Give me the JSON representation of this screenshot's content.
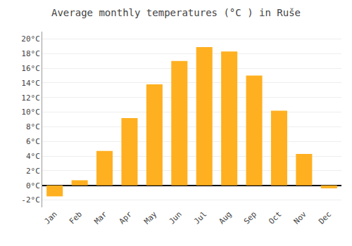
{
  "chart_data": {
    "type": "bar",
    "title": "Average monthly temperatures (°C ) in Ruše",
    "categories": [
      "Jan",
      "Feb",
      "Mar",
      "Apr",
      "May",
      "Jun",
      "Jul",
      "Aug",
      "Sep",
      "Oct",
      "Nov",
      "Dec"
    ],
    "values": [
      -1.5,
      0.7,
      4.7,
      9.2,
      13.8,
      17.0,
      18.9,
      18.3,
      15.0,
      10.2,
      4.3,
      -0.4
    ],
    "color": "#FFB020",
    "ylim": [
      -3,
      21
    ],
    "yticks": [
      {
        "value": -2,
        "label": "-2°C"
      },
      {
        "value": 0,
        "label": "0°C"
      },
      {
        "value": 2,
        "label": "2°C"
      },
      {
        "value": 4,
        "label": "4°C"
      },
      {
        "value": 6,
        "label": "6°C"
      },
      {
        "value": 8,
        "label": "8°C"
      },
      {
        "value": 10,
        "label": "10°C"
      },
      {
        "value": 12,
        "label": "12°C"
      },
      {
        "value": 14,
        "label": "14°C"
      },
      {
        "value": 16,
        "label": "16°C"
      },
      {
        "value": 18,
        "label": "18°C"
      },
      {
        "value": 20,
        "label": "20°C"
      }
    ],
    "grid": true
  }
}
